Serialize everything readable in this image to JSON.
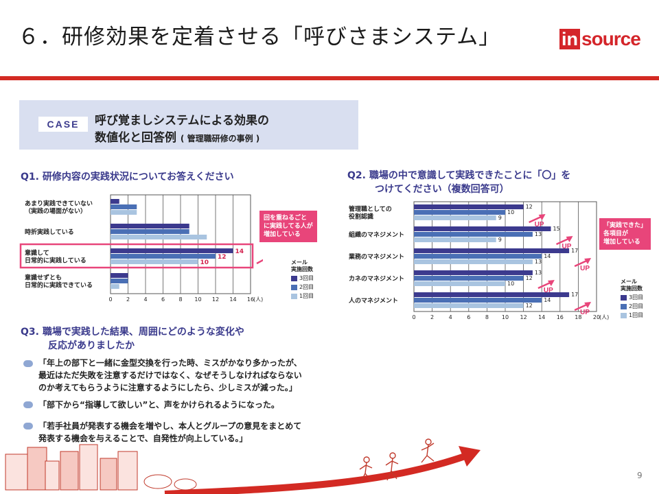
{
  "slide": {
    "title": "６．研修効果を定着させる「呼びさまシステム」",
    "logo_in": "in",
    "logo_source": "source",
    "page_number": "9"
  },
  "case": {
    "label": "CASE",
    "title_line1": "呼び覚ましシステムによる効果の",
    "title_line2": "数値化と回答例",
    "title_note": "( 管理職研修の事例 )"
  },
  "q1": {
    "heading": "Q1.  研修内容の実践状況についてお答えください",
    "callout": [
      "回を重ねるごと",
      "に実践してる人が",
      "増加している"
    ],
    "up_label": "UP",
    "unit": "(人)"
  },
  "q2": {
    "heading_line1": "Q2.  職場の中で意識して実践できたことに「〇」を",
    "heading_line2": "つけてください（複数回答可）",
    "callout": [
      "「実践できた」",
      "各項目が",
      "増加している"
    ],
    "up_label": "UP",
    "unit": "(人)"
  },
  "legend": {
    "title_line1": "メール",
    "title_line2": "実施回数",
    "items": [
      "3回目",
      "2回目",
      "1回目"
    ]
  },
  "q3": {
    "heading_line1": "Q3.  職場で実践した結果、周囲にどのような変化や",
    "heading_line2": "反応がありましたか",
    "comments": [
      [
        "「年上の部下と一緒に金型交換を行った時、ミスがかなり多かったが、",
        "最近はただ失敗を注意するだけではなく、なぜそうしなければならない",
        "のか考えてもらうように注意するようにしたら、少しミスが減った。」"
      ],
      [
        "「部下から“指導して欲しい”と、声をかけられるようになった。"
      ],
      [
        "「若手社員が発表する機会を増やし、本人とグループの意見をまとめて",
        "発表する機会を与えることで、自発性が向上している。」"
      ]
    ]
  },
  "colors": {
    "series3": "#3c3a8e",
    "series2": "#4a6fb5",
    "series1": "#a9c4e0",
    "accent_red": "#d32a23",
    "pink": "#e8457a"
  },
  "chart_data": [
    {
      "type": "bar",
      "title": "Q1.  研修内容の実践状況についてお答えください",
      "orientation": "horizontal",
      "categories": [
        "あまり実践できていない\n（実践の場面がない）",
        "時折実践している",
        "意識して\n日常的に実践している",
        "意識せずとも\n日常的に実践できている"
      ],
      "series": [
        {
          "name": "3回目",
          "values": [
            1,
            9,
            14,
            2
          ]
        },
        {
          "name": "2回目",
          "values": [
            3,
            9,
            12,
            2
          ]
        },
        {
          "name": "1回目",
          "values": [
            3,
            11,
            10,
            1
          ]
        }
      ],
      "data_labels": {
        "3回目": [
          null,
          null,
          14,
          null
        ],
        "2回目": [
          null,
          null,
          12,
          null
        ],
        "1回目": [
          null,
          null,
          10,
          null
        ]
      },
      "xticks": [
        "0",
        "2",
        "4",
        "6",
        "8",
        "10",
        "12",
        "14",
        "16"
      ],
      "xlim": [
        0,
        16
      ],
      "xlabel": "(人)",
      "highlight_category": 2
    },
    {
      "type": "bar",
      "title": "Q2.  職場の中で意識して実践できたことに「〇」を つけてください（複数回答可）",
      "orientation": "horizontal",
      "categories": [
        "管理職としての\n役割認識",
        "組織のマネジメント",
        "業務のマネジメント",
        "カネのマネジメント",
        "人のマネジメント"
      ],
      "series": [
        {
          "name": "3回目",
          "values": [
            12,
            15,
            17,
            13,
            17
          ]
        },
        {
          "name": "2回目",
          "values": [
            10,
            13,
            14,
            12,
            14
          ]
        },
        {
          "name": "1回目",
          "values": [
            9,
            9,
            13,
            10,
            12
          ]
        }
      ],
      "xticks": [
        "0",
        "2",
        "4",
        "6",
        "8",
        "10",
        "12",
        "14",
        "16",
        "18",
        "20"
      ],
      "xlim": [
        0,
        20
      ],
      "xlabel": "(人)"
    }
  ]
}
